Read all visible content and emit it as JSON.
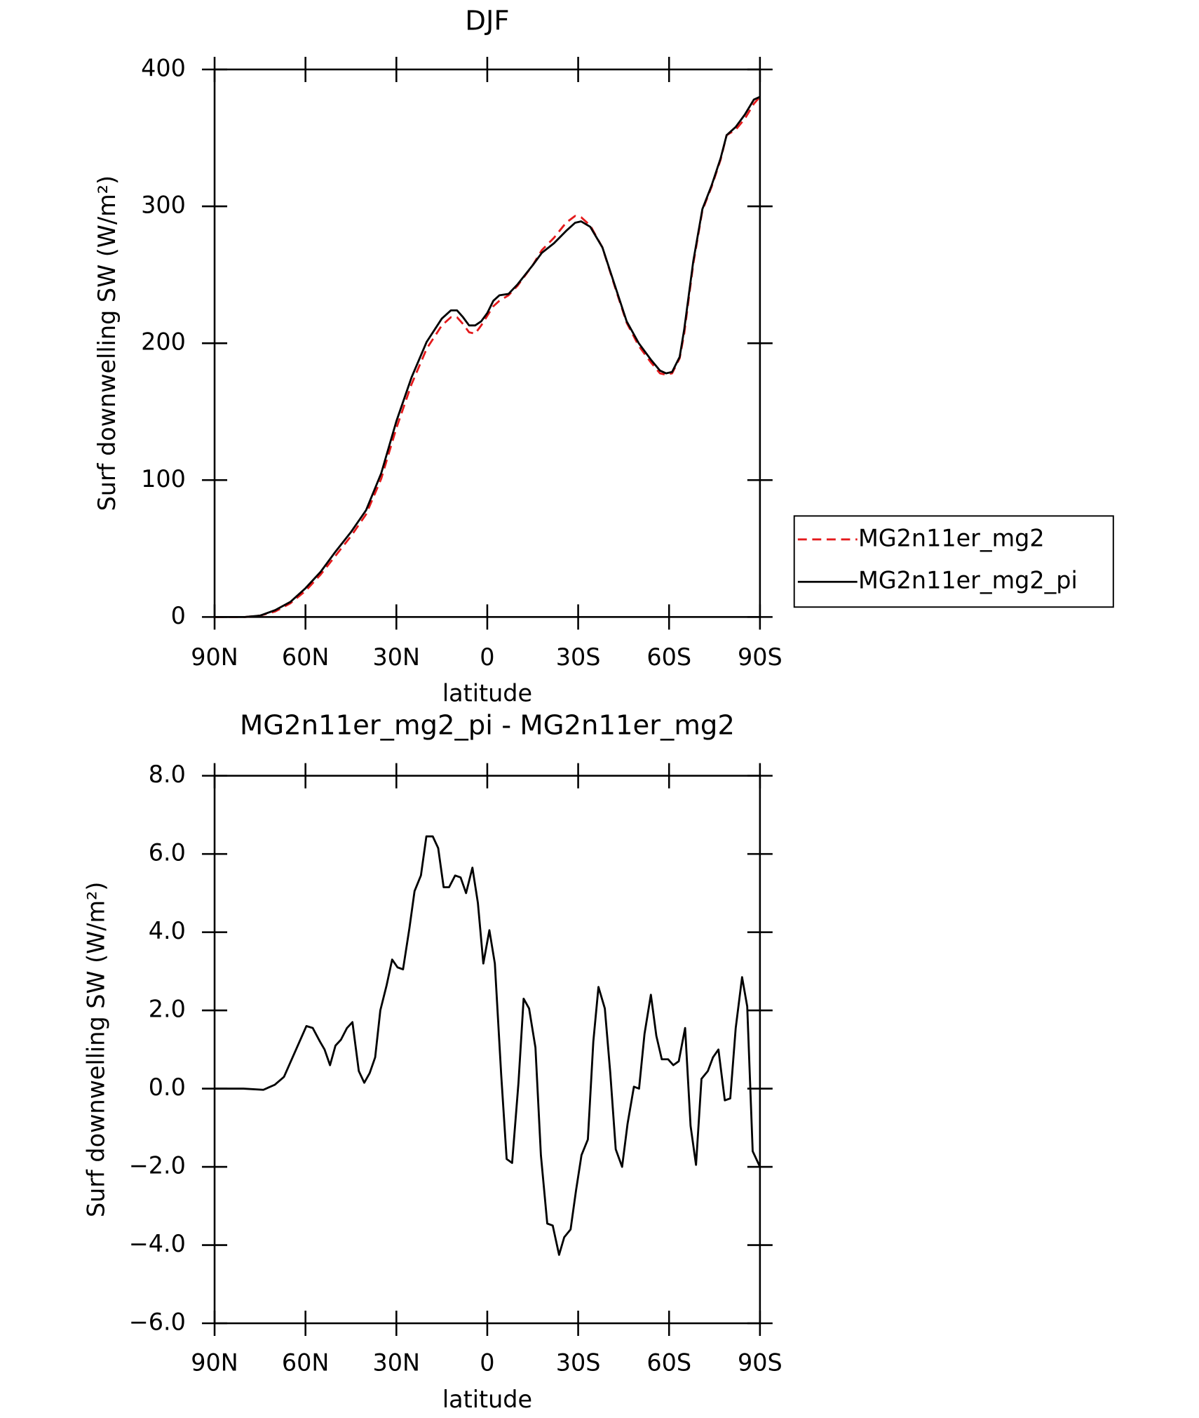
{
  "chart_data": [
    {
      "type": "line",
      "title": "DJF",
      "xlabel": "latitude",
      "ylabel": "Surf downwelling SW (W/m²)",
      "xlim": [
        90,
        -90
      ],
      "ylim": [
        0,
        400
      ],
      "xticks": [
        {
          "value": 90,
          "label": "90N"
        },
        {
          "value": 60,
          "label": "60N"
        },
        {
          "value": 30,
          "label": "30N"
        },
        0,
        {
          "value": -30,
          "label": "30S"
        },
        {
          "value": -60,
          "label": "60S"
        },
        {
          "value": -90,
          "label": "90S"
        }
      ],
      "yticks": [
        0,
        100,
        200,
        300,
        400
      ],
      "legend": "right",
      "x": [
        90,
        85,
        80,
        75,
        70,
        65,
        60,
        55,
        50,
        45,
        40,
        35,
        30,
        25,
        20,
        15,
        12,
        10,
        8,
        6,
        4,
        2,
        0,
        -2,
        -4,
        -7,
        -10,
        -15,
        -18,
        -22,
        -26,
        -29,
        -31,
        -34,
        -38,
        -42,
        -46,
        -50,
        -54,
        -57,
        -59,
        -61,
        -63.5,
        -65,
        -68,
        -71,
        -74,
        -77,
        -79,
        -82,
        -85,
        -88,
        -90
      ],
      "series": [
        {
          "name": "MG2n11er_mg2",
          "color": "#e41a1c",
          "linestyle": "dashed",
          "values": [
            0,
            0,
            0,
            1,
            4,
            10,
            19,
            31,
            45,
            59,
            75,
            101,
            138,
            170,
            196,
            213,
            219,
            219,
            214,
            208,
            207,
            213,
            220,
            227,
            231,
            235,
            242,
            257,
            268,
            277,
            288,
            293,
            292,
            286,
            270,
            242,
            215,
            198,
            186,
            178,
            177,
            178,
            189,
            207,
            258,
            297,
            314,
            334,
            352,
            356,
            364,
            375,
            380
          ]
        },
        {
          "name": "MG2n11er_mg2_pi",
          "color": "#000000",
          "linestyle": "solid",
          "values": [
            0,
            0,
            0,
            1,
            5,
            11,
            21,
            33,
            48,
            62,
            78,
            105,
            143,
            175,
            201,
            218,
            224,
            224,
            219,
            213,
            213,
            216,
            222,
            231,
            235,
            236,
            243,
            257,
            266,
            273,
            282,
            288,
            289,
            285,
            270,
            243,
            216,
            200,
            188,
            180,
            178,
            179,
            190,
            210,
            260,
            298,
            315,
            335,
            352,
            358,
            367,
            378,
            380
          ]
        }
      ]
    },
    {
      "type": "line",
      "title": "MG2n11er_mg2_pi - MG2n11er_mg2",
      "xlabel": "latitude",
      "ylabel": "Surf downwelling SW (W/m²)",
      "xlim": [
        90,
        -90
      ],
      "ylim": [
        -6,
        8
      ],
      "xticks": [
        {
          "value": 90,
          "label": "90N"
        },
        {
          "value": 60,
          "label": "60N"
        },
        {
          "value": 30,
          "label": "30N"
        },
        0,
        {
          "value": -30,
          "label": "30S"
        },
        {
          "value": -60,
          "label": "60S"
        },
        {
          "value": -90,
          "label": "90S"
        }
      ],
      "yticks": [
        {
          "value": -6,
          "label": "−6.0"
        },
        {
          "value": -4,
          "label": "−4.0"
        },
        {
          "value": -2,
          "label": "−2.0"
        },
        {
          "value": 0,
          "label": "0.0"
        },
        {
          "value": 2,
          "label": "2.0"
        },
        {
          "value": 4,
          "label": "4.0"
        },
        {
          "value": 6,
          "label": "6.0"
        },
        {
          "value": 8,
          "label": "8.0"
        }
      ],
      "x": [
        90,
        80.5,
        73.9,
        70.1,
        67.1,
        59.7,
        57.6,
        55.2,
        53.7,
        51.9,
        50.1,
        48.3,
        46.3,
        44.5,
        42.4,
        40.6,
        38.8,
        37.0,
        35.3,
        33.2,
        31.4,
        29.6,
        27.8,
        25.7,
        24.0,
        21.9,
        20.1,
        18.0,
        16.2,
        14.4,
        12.6,
        10.6,
        8.8,
        7.0,
        4.9,
        3.1,
        1.3,
        -0.7,
        -2.5,
        -4.6,
        -6.4,
        -8.2,
        -10.3,
        -12.0,
        -13.8,
        -15.9,
        -17.7,
        -19.8,
        -21.6,
        -23.7,
        -25.4,
        -27.5,
        -29.3,
        -31.1,
        -33.2,
        -35.0,
        -36.7,
        -38.8,
        -40.6,
        -42.4,
        -44.5,
        -46.3,
        -48.4,
        -50.1,
        -51.9,
        -54.0,
        -55.8,
        -57.6,
        -59.7,
        -61.4,
        -63.2,
        -65.3,
        -67.1,
        -68.9,
        -70.7,
        -72.8,
        -74.5,
        -76.3,
        -78.4,
        -80.2,
        -82.0,
        -84.1,
        -85.8,
        -87.6,
        -90
      ],
      "series": [
        {
          "color": "#000000",
          "linestyle": "solid",
          "values": [
            0,
            0,
            -0.03,
            0.1,
            0.3,
            1.6,
            1.55,
            1.2,
            1.0,
            0.6,
            1.1,
            1.25,
            1.55,
            1.7,
            0.45,
            0.15,
            0.4,
            0.8,
            2.0,
            2.65,
            3.3,
            3.1,
            3.05,
            4.1,
            5.05,
            5.45,
            6.45,
            6.45,
            6.15,
            5.15,
            5.15,
            5.45,
            5.4,
            5.0,
            5.65,
            4.75,
            3.2,
            4.05,
            3.2,
            0.35,
            -1.8,
            -1.9,
            0.15,
            2.3,
            2.05,
            1.05,
            -1.7,
            -3.45,
            -3.5,
            -4.25,
            -3.8,
            -3.6,
            -2.6,
            -1.7,
            -1.3,
            1.2,
            2.6,
            2.05,
            0.4,
            -1.55,
            -2.0,
            -0.9,
            0.05,
            0.0,
            1.4,
            2.4,
            1.35,
            0.75,
            0.75,
            0.6,
            0.7,
            1.55,
            -0.95,
            -1.95,
            0.25,
            0.45,
            0.8,
            1.0,
            -0.3,
            -0.25,
            1.55,
            2.85,
            2.1,
            -1.6,
            -2.0
          ]
        }
      ]
    }
  ]
}
